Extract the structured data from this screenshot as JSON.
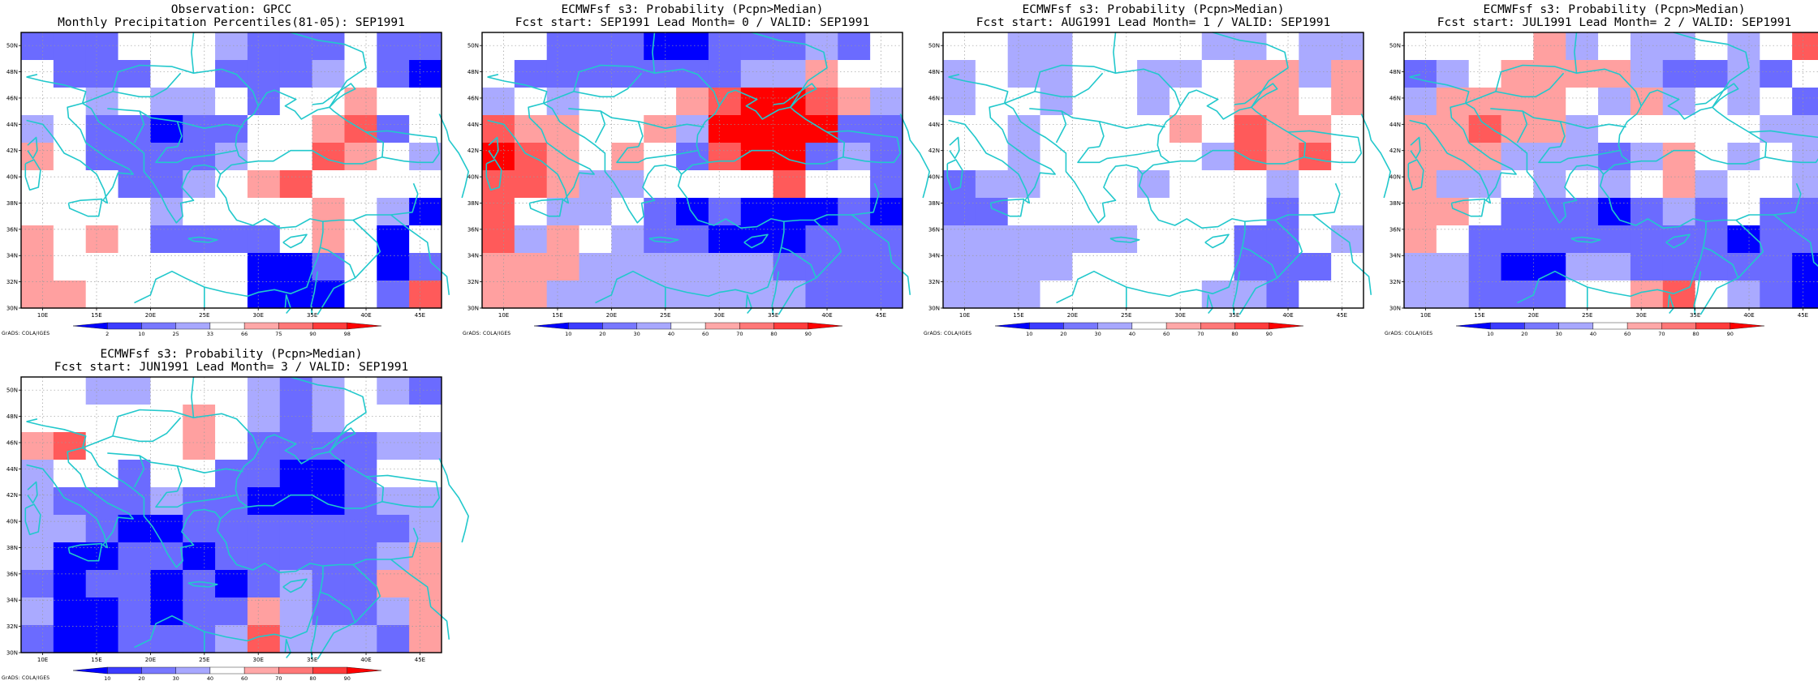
{
  "colors": {
    "coast": "#22c8cc",
    "grid": "#9a9a9a",
    "frame": "#000000"
  },
  "axes": {
    "lon_labels": [
      "10E",
      "15E",
      "20E",
      "25E",
      "30E",
      "35E",
      "40E",
      "45E"
    ],
    "lat_labels": [
      "50N",
      "48N",
      "46N",
      "44N",
      "42N",
      "40N",
      "38N",
      "36N",
      "34N",
      "32N",
      "30N"
    ],
    "lon_range": [
      8,
      47
    ],
    "lat_range": [
      30,
      51
    ]
  },
  "credit": "GrADS: COLA/IGES",
  "panels": [
    {
      "title1": "Observation: GPCC",
      "title2": "Monthly Precipitation Percentiles(81-05): SEP1991",
      "legend_labels": [
        "2",
        "10",
        "25",
        "33",
        "66",
        "75",
        "90",
        "98"
      ],
      "legend_colors": [
        "#0000ff",
        "#3c3cff",
        "#7878ff",
        "#a8a8ff",
        "#ffffff",
        "#ffa8a8",
        "#ff7878",
        "#ff3c3c",
        "#ff0000"
      ],
      "grid": [
        [
          "M",
          "M",
          "M",
          "W",
          "W",
          "W",
          "L",
          "M",
          "M",
          "M",
          "W",
          "M",
          "M"
        ],
        [
          "W",
          "M",
          "M",
          "M",
          "W",
          "W",
          "M",
          "M",
          "M",
          "L",
          "W",
          "M",
          "D"
        ],
        [
          "W",
          "W",
          "L",
          "W",
          "L",
          "L",
          "W",
          "M",
          "W",
          "W",
          "R",
          "W",
          "W"
        ],
        [
          "L",
          "W",
          "M",
          "M",
          "D",
          "M",
          "M",
          "W",
          "W",
          "R",
          "S",
          "M",
          "W"
        ],
        [
          "R",
          "W",
          "M",
          "M",
          "M",
          "M",
          "L",
          "W",
          "W",
          "S",
          "R",
          "W",
          "L"
        ],
        [
          "W",
          "W",
          "W",
          "M",
          "M",
          "L",
          "W",
          "R",
          "S",
          "W",
          "W",
          "W",
          "W"
        ],
        [
          "W",
          "W",
          "W",
          "W",
          "L",
          "W",
          "W",
          "W",
          "W",
          "R",
          "W",
          "L",
          "D"
        ],
        [
          "R",
          "W",
          "R",
          "W",
          "M",
          "M",
          "M",
          "M",
          "W",
          "R",
          "W",
          "D",
          "W"
        ],
        [
          "R",
          "W",
          "W",
          "W",
          "W",
          "W",
          "W",
          "D",
          "D",
          "M",
          "W",
          "D",
          "M"
        ],
        [
          "R",
          "R",
          "W",
          "W",
          "W",
          "W",
          "W",
          "D",
          "D",
          "D",
          "W",
          "M",
          "S"
        ]
      ]
    },
    {
      "title1": "ECMWFsf s3: Probability (Pcpn>Median)",
      "title2": "Fcst start: SEP1991   Lead Month= 0 / VALID: SEP1991",
      "legend_labels": [
        "10",
        "20",
        "30",
        "40",
        "60",
        "70",
        "80",
        "90"
      ],
      "legend_colors": [
        "#0000ff",
        "#3c3cff",
        "#7878ff",
        "#a8a8ff",
        "#ffffff",
        "#ffa8a8",
        "#ff7878",
        "#ff3c3c",
        "#ff0000"
      ],
      "grid": [
        [
          "W",
          "W",
          "M",
          "M",
          "M",
          "D",
          "D",
          "M",
          "M",
          "M",
          "L",
          "M",
          "W"
        ],
        [
          "W",
          "M",
          "M",
          "M",
          "M",
          "M",
          "M",
          "M",
          "L",
          "L",
          "R",
          "W",
          "W"
        ],
        [
          "L",
          "W",
          "L",
          "W",
          "W",
          "W",
          "R",
          "S",
          "D2",
          "D2",
          "S",
          "R",
          "L"
        ],
        [
          "S",
          "R",
          "R",
          "W",
          "W",
          "R",
          "L",
          "D2",
          "D2",
          "D2",
          "D2",
          "M",
          "M"
        ],
        [
          "D2",
          "S",
          "R",
          "W",
          "R",
          "W",
          "M",
          "S",
          "D2",
          "D2",
          "M",
          "L",
          "M"
        ],
        [
          "S",
          "S",
          "R",
          "L",
          "L",
          "W",
          "W",
          "W",
          "W",
          "S",
          "W",
          "W",
          "M"
        ],
        [
          "S",
          "W",
          "L",
          "L",
          "W",
          "M",
          "D",
          "M",
          "D",
          "D",
          "D",
          "M",
          "D"
        ],
        [
          "S",
          "L",
          "R",
          "W",
          "L",
          "M",
          "M",
          "D",
          "D",
          "D",
          "M",
          "M",
          "M"
        ],
        [
          "R",
          "R",
          "R",
          "L",
          "L",
          "L",
          "L",
          "L",
          "L",
          "M",
          "M",
          "M",
          "M"
        ],
        [
          "R",
          "R",
          "L",
          "L",
          "L",
          "L",
          "L",
          "L",
          "L",
          "L",
          "M",
          "M",
          "M"
        ]
      ]
    },
    {
      "title1": "ECMWFsf s3: Probability (Pcpn>Median)",
      "title2": "Fcst start: AUG1991   Lead Month= 1 / VALID: SEP1991",
      "legend_labels": [
        "10",
        "20",
        "30",
        "40",
        "60",
        "70",
        "80",
        "90"
      ],
      "legend_colors": [
        "#0000ff",
        "#3c3cff",
        "#7878ff",
        "#a8a8ff",
        "#ffffff",
        "#ffa8a8",
        "#ff7878",
        "#ff3c3c",
        "#ff0000"
      ],
      "grid": [
        [
          "W",
          "W",
          "L",
          "L",
          "W",
          "W",
          "W",
          "W",
          "L",
          "L",
          "W",
          "L",
          "L"
        ],
        [
          "L",
          "W",
          "L",
          "L",
          "W",
          "W",
          "L",
          "L",
          "W",
          "R",
          "R",
          "L",
          "R"
        ],
        [
          "L",
          "W",
          "W",
          "L",
          "W",
          "W",
          "L",
          "W",
          "W",
          "R",
          "R",
          "W",
          "R"
        ],
        [
          "W",
          "W",
          "L",
          "W",
          "W",
          "W",
          "W",
          "R",
          "W",
          "S",
          "R",
          "R",
          "W"
        ],
        [
          "W",
          "W",
          "L",
          "W",
          "W",
          "W",
          "W",
          "W",
          "L",
          "S",
          "R",
          "S",
          "W"
        ],
        [
          "M",
          "L",
          "L",
          "W",
          "W",
          "W",
          "L",
          "W",
          "W",
          "W",
          "L",
          "W",
          "W"
        ],
        [
          "M",
          "M",
          "W",
          "W",
          "W",
          "W",
          "W",
          "W",
          "W",
          "W",
          "M",
          "W",
          "W"
        ],
        [
          "L",
          "L",
          "L",
          "L",
          "L",
          "L",
          "W",
          "W",
          "W",
          "M",
          "M",
          "W",
          "L"
        ],
        [
          "L",
          "L",
          "L",
          "L",
          "W",
          "W",
          "W",
          "W",
          "W",
          "M",
          "M",
          "M",
          "W"
        ],
        [
          "L",
          "L",
          "L",
          "W",
          "W",
          "W",
          "W",
          "W",
          "L",
          "L",
          "M",
          "W",
          "W"
        ]
      ]
    },
    {
      "title1": "ECMWFsf s3: Probability (Pcpn>Median)",
      "title2": "Fcst start: JUL1991   Lead Month= 2 / VALID: SEP1991",
      "legend_labels": [
        "10",
        "20",
        "30",
        "40",
        "60",
        "70",
        "80",
        "90"
      ],
      "legend_colors": [
        "#0000ff",
        "#3c3cff",
        "#7878ff",
        "#a8a8ff",
        "#ffffff",
        "#ffa8a8",
        "#ff7878",
        "#ff3c3c",
        "#ff0000"
      ],
      "grid": [
        [
          "W",
          "W",
          "W",
          "W",
          "R",
          "L",
          "W",
          "L",
          "L",
          "W",
          "L",
          "W",
          "S"
        ],
        [
          "M",
          "L",
          "W",
          "R",
          "R",
          "R",
          "R",
          "L",
          "M",
          "M",
          "L",
          "M",
          "W"
        ],
        [
          "L",
          "R",
          "R",
          "R",
          "R",
          "W",
          "L",
          "R",
          "L",
          "W",
          "L",
          "W",
          "M"
        ],
        [
          "R",
          "R",
          "S",
          "R",
          "R",
          "L",
          "W",
          "W",
          "W",
          "W",
          "W",
          "L",
          "L"
        ],
        [
          "R",
          "R",
          "R",
          "L",
          "L",
          "L",
          "M",
          "L",
          "R",
          "W",
          "L",
          "W",
          "L"
        ],
        [
          "R",
          "L",
          "L",
          "W",
          "L",
          "W",
          "L",
          "W",
          "R",
          "L",
          "W",
          "W",
          "L"
        ],
        [
          "R",
          "R",
          "W",
          "M",
          "M",
          "M",
          "D",
          "M",
          "L",
          "M",
          "W",
          "M",
          "M"
        ],
        [
          "R",
          "W",
          "M",
          "M",
          "M",
          "M",
          "M",
          "M",
          "M",
          "M",
          "D",
          "M",
          "M"
        ],
        [
          "L",
          "L",
          "M",
          "D",
          "D",
          "L",
          "L",
          "M",
          "M",
          "M",
          "M",
          "M",
          "D"
        ],
        [
          "L",
          "L",
          "M",
          "M",
          "M",
          "W",
          "W",
          "R",
          "S",
          "W",
          "L",
          "M",
          "D"
        ]
      ]
    },
    {
      "title1": "ECMWFsf s3: Probability (Pcpn>Median)",
      "title2": "Fcst start: JUN1991   Lead Month= 3 / VALID: SEP1991",
      "legend_labels": [
        "10",
        "20",
        "30",
        "40",
        "60",
        "70",
        "80",
        "90"
      ],
      "legend_colors": [
        "#0000ff",
        "#3c3cff",
        "#7878ff",
        "#a8a8ff",
        "#ffffff",
        "#ffa8a8",
        "#ff7878",
        "#ff3c3c",
        "#ff0000"
      ],
      "grid": [
        [
          "W",
          "W",
          "L",
          "L",
          "W",
          "W",
          "W",
          "L",
          "M",
          "L",
          "W",
          "L",
          "M"
        ],
        [
          "W",
          "W",
          "W",
          "W",
          "W",
          "R",
          "W",
          "L",
          "M",
          "L",
          "W",
          "W",
          "W"
        ],
        [
          "R",
          "S",
          "W",
          "W",
          "W",
          "R",
          "W",
          "M",
          "M",
          "M",
          "M",
          "L",
          "L"
        ],
        [
          "L",
          "W",
          "W",
          "M",
          "W",
          "W",
          "M",
          "M",
          "D",
          "D",
          "M",
          "W",
          "W"
        ],
        [
          "L",
          "M",
          "M",
          "M",
          "L",
          "M",
          "M",
          "D",
          "D",
          "D",
          "M",
          "L",
          "L"
        ],
        [
          "L",
          "L",
          "M",
          "D",
          "D",
          "M",
          "M",
          "M",
          "M",
          "M",
          "M",
          "M",
          "L"
        ],
        [
          "L",
          "D",
          "D",
          "M",
          "M",
          "D",
          "M",
          "M",
          "M",
          "M",
          "M",
          "L",
          "R"
        ],
        [
          "M",
          "D",
          "M",
          "M",
          "D",
          "M",
          "D",
          "M",
          "L",
          "M",
          "M",
          "R",
          "R"
        ],
        [
          "L",
          "D",
          "D",
          "M",
          "D",
          "M",
          "M",
          "R",
          "L",
          "M",
          "M",
          "L",
          "R"
        ],
        [
          "M",
          "D",
          "D",
          "M",
          "M",
          "M",
          "L",
          "S",
          "L",
          "L",
          "L",
          "M",
          "R"
        ]
      ]
    }
  ]
}
